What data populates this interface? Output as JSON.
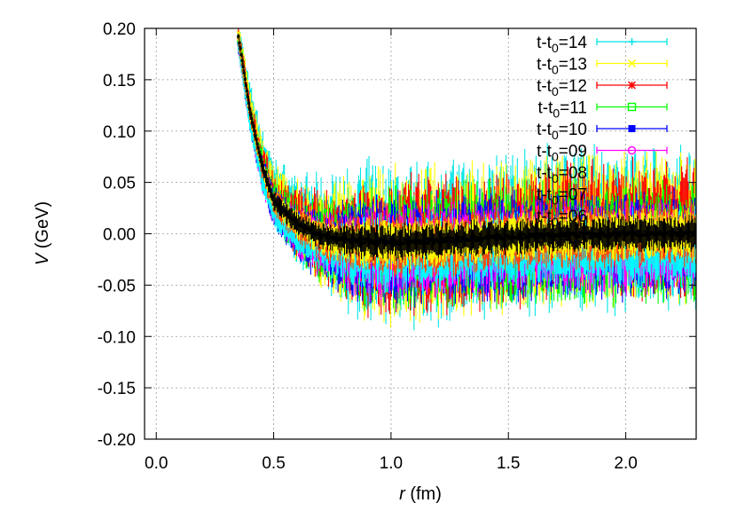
{
  "chart_data": {
    "type": "scatter",
    "title": "",
    "xlabel": {
      "var": "r",
      "unit": " (fm)"
    },
    "ylabel": {
      "var": "V",
      "unit": " (GeV)"
    },
    "xlim": [
      -0.05,
      2.3
    ],
    "ylim": [
      -0.2,
      0.2
    ],
    "x_ticks": [
      0.0,
      0.5,
      1.0,
      1.5,
      2.0
    ],
    "x_tick_labels": [
      "0.0",
      "0.5",
      "1.0",
      "1.5",
      "2.0"
    ],
    "y_ticks": [
      0.2,
      0.15,
      0.1,
      0.05,
      0.0,
      -0.05,
      -0.1,
      -0.15,
      -0.2
    ],
    "y_tick_labels": [
      "0.20",
      "0.15",
      "0.10",
      "0.05",
      "0.00",
      "-0.05",
      "-0.10",
      "-0.15",
      "-0.20"
    ],
    "grid": true,
    "legend_position": "top-right",
    "series": [
      {
        "name": "t-t0=14",
        "label_main": "t-t",
        "label_sub": "0",
        "label_tail": "=14",
        "color": "#00e5e5",
        "marker": "+",
        "values": [
          [
            0.35,
            0.195
          ],
          [
            0.4,
            0.13
          ],
          [
            0.45,
            0.08
          ],
          [
            0.5,
            0.045
          ],
          [
            0.6,
            0.015
          ],
          [
            0.7,
            0.0
          ],
          [
            0.85,
            -0.01
          ],
          [
            1.0,
            -0.012
          ],
          [
            1.2,
            -0.01
          ],
          [
            1.4,
            -0.005
          ],
          [
            1.6,
            0.0
          ],
          [
            1.8,
            0.005
          ],
          [
            2.0,
            0.005
          ],
          [
            2.3,
            0.005
          ]
        ]
      },
      {
        "name": "t-t0=13",
        "label_main": "t-t",
        "label_sub": "0",
        "label_tail": "=13",
        "color": "#ffff00",
        "marker": "x",
        "values": [
          [
            0.35,
            0.195
          ],
          [
            0.4,
            0.125
          ],
          [
            0.45,
            0.075
          ],
          [
            0.5,
            0.04
          ],
          [
            0.6,
            0.012
          ],
          [
            0.7,
            -0.002
          ],
          [
            0.85,
            -0.01
          ],
          [
            1.0,
            -0.012
          ],
          [
            1.2,
            -0.01
          ],
          [
            1.4,
            -0.006
          ],
          [
            1.6,
            0.0
          ],
          [
            1.8,
            0.004
          ],
          [
            2.0,
            0.004
          ],
          [
            2.3,
            0.004
          ]
        ]
      },
      {
        "name": "t-t0=12",
        "label_main": "t-t",
        "label_sub": "0",
        "label_tail": "=12",
        "color": "#ff0000",
        "marker": "*",
        "values": [
          [
            0.35,
            0.19
          ],
          [
            0.4,
            0.12
          ],
          [
            0.45,
            0.07
          ],
          [
            0.5,
            0.035
          ],
          [
            0.6,
            0.01
          ],
          [
            0.7,
            -0.004
          ],
          [
            0.85,
            -0.01
          ],
          [
            1.0,
            -0.012
          ],
          [
            1.2,
            -0.01
          ],
          [
            1.4,
            -0.007
          ],
          [
            1.6,
            -0.002
          ],
          [
            1.8,
            0.002
          ],
          [
            2.0,
            0.004
          ],
          [
            2.3,
            0.004
          ]
        ]
      },
      {
        "name": "t-t0=11",
        "label_main": "t-t",
        "label_sub": "0",
        "label_tail": "=11",
        "color": "#00ff00",
        "marker": "square-open",
        "values": [
          [
            0.35,
            0.188
          ],
          [
            0.4,
            0.115
          ],
          [
            0.45,
            0.065
          ],
          [
            0.5,
            0.03
          ],
          [
            0.6,
            0.006
          ],
          [
            0.7,
            -0.007
          ],
          [
            0.85,
            -0.013
          ],
          [
            1.0,
            -0.014
          ],
          [
            1.2,
            -0.012
          ],
          [
            1.4,
            -0.01
          ],
          [
            1.6,
            -0.009
          ],
          [
            1.8,
            -0.008
          ],
          [
            2.0,
            -0.008
          ],
          [
            2.3,
            -0.008
          ]
        ]
      },
      {
        "name": "t-t0=10",
        "label_main": "t-t",
        "label_sub": "0",
        "label_tail": "=10",
        "color": "#0000ff",
        "marker": "square-filled",
        "values": [
          [
            0.35,
            0.186
          ],
          [
            0.4,
            0.11
          ],
          [
            0.45,
            0.06
          ],
          [
            0.5,
            0.027
          ],
          [
            0.6,
            0.003
          ],
          [
            0.7,
            -0.009
          ],
          [
            0.85,
            -0.015
          ],
          [
            1.0,
            -0.016
          ],
          [
            1.2,
            -0.014
          ],
          [
            1.4,
            -0.012
          ],
          [
            1.6,
            -0.011
          ],
          [
            1.8,
            -0.011
          ],
          [
            2.0,
            -0.011
          ],
          [
            2.3,
            -0.011
          ]
        ]
      },
      {
        "name": "t-t0=09",
        "label_main": "t-t",
        "label_sub": "0",
        "label_tail": "=09",
        "color": "#ff00ff",
        "marker": "circle-open",
        "values": [
          [
            0.35,
            0.185
          ],
          [
            0.4,
            0.108
          ],
          [
            0.45,
            0.057
          ],
          [
            0.5,
            0.024
          ],
          [
            0.6,
            0.001
          ],
          [
            0.7,
            -0.011
          ],
          [
            0.85,
            -0.017
          ],
          [
            1.0,
            -0.018
          ],
          [
            1.2,
            -0.016
          ],
          [
            1.4,
            -0.014
          ],
          [
            1.6,
            -0.013
          ],
          [
            1.8,
            -0.013
          ],
          [
            2.0,
            -0.013
          ],
          [
            2.3,
            -0.013
          ]
        ]
      },
      {
        "name": "t-t0=08",
        "label_main": "t-t",
        "label_sub": "0",
        "label_tail": "=08",
        "color": "#00ffff",
        "marker": "circle-filled",
        "values": [
          [
            0.35,
            0.184
          ],
          [
            0.4,
            0.106
          ],
          [
            0.45,
            0.055
          ],
          [
            0.5,
            0.022
          ],
          [
            0.6,
            0.0
          ],
          [
            0.7,
            -0.012
          ],
          [
            0.85,
            -0.018
          ],
          [
            1.0,
            -0.019
          ],
          [
            1.2,
            -0.017
          ],
          [
            1.4,
            -0.015
          ],
          [
            1.6,
            -0.014
          ],
          [
            1.8,
            -0.014
          ],
          [
            2.0,
            -0.014
          ],
          [
            2.3,
            -0.014
          ]
        ]
      },
      {
        "name": "t-t0=07",
        "label_main": "t-t",
        "label_sub": "0",
        "label_tail": "=07",
        "color": "#ff4500",
        "marker": "triangle-open",
        "values": [
          [
            0.35,
            0.19
          ],
          [
            0.4,
            0.115
          ],
          [
            0.45,
            0.065
          ],
          [
            0.5,
            0.03
          ],
          [
            0.6,
            0.008
          ],
          [
            0.7,
            -0.004
          ],
          [
            0.85,
            -0.009
          ],
          [
            1.0,
            -0.01
          ],
          [
            1.2,
            -0.009
          ],
          [
            1.4,
            -0.006
          ],
          [
            1.6,
            -0.004
          ],
          [
            1.8,
            -0.003
          ],
          [
            2.0,
            0.0
          ],
          [
            2.3,
            0.0
          ]
        ]
      },
      {
        "name": "t-t0=06",
        "label_main": "t-t",
        "label_sub": "0",
        "label_tail": "=06",
        "color": "#ffff00",
        "marker": "triangle-filled",
        "values": [
          [
            0.35,
            0.191
          ],
          [
            0.4,
            0.117
          ],
          [
            0.45,
            0.066
          ],
          [
            0.5,
            0.031
          ],
          [
            0.6,
            0.009
          ],
          [
            0.7,
            -0.003
          ],
          [
            0.85,
            -0.008
          ],
          [
            1.0,
            -0.009
          ],
          [
            1.2,
            -0.008
          ],
          [
            1.4,
            -0.005
          ],
          [
            1.6,
            -0.003
          ],
          [
            1.8,
            -0.002
          ],
          [
            2.0,
            0.0
          ],
          [
            2.3,
            0.0
          ]
        ]
      },
      {
        "name": "t-t0=05",
        "label_main": "t-t",
        "label_sub": "0",
        "label_tail": "=05",
        "color": "#000000",
        "marker": "triangle-open",
        "values": [
          [
            0.35,
            0.192
          ],
          [
            0.4,
            0.118
          ],
          [
            0.45,
            0.067
          ],
          [
            0.5,
            0.032
          ],
          [
            0.6,
            0.01
          ],
          [
            0.7,
            -0.002
          ],
          [
            0.85,
            -0.007
          ],
          [
            1.0,
            -0.008
          ],
          [
            1.2,
            -0.007
          ],
          [
            1.4,
            -0.004
          ],
          [
            1.6,
            -0.002
          ],
          [
            1.8,
            -0.001
          ],
          [
            2.0,
            0.0
          ],
          [
            2.3,
            0.0
          ]
        ]
      }
    ]
  }
}
